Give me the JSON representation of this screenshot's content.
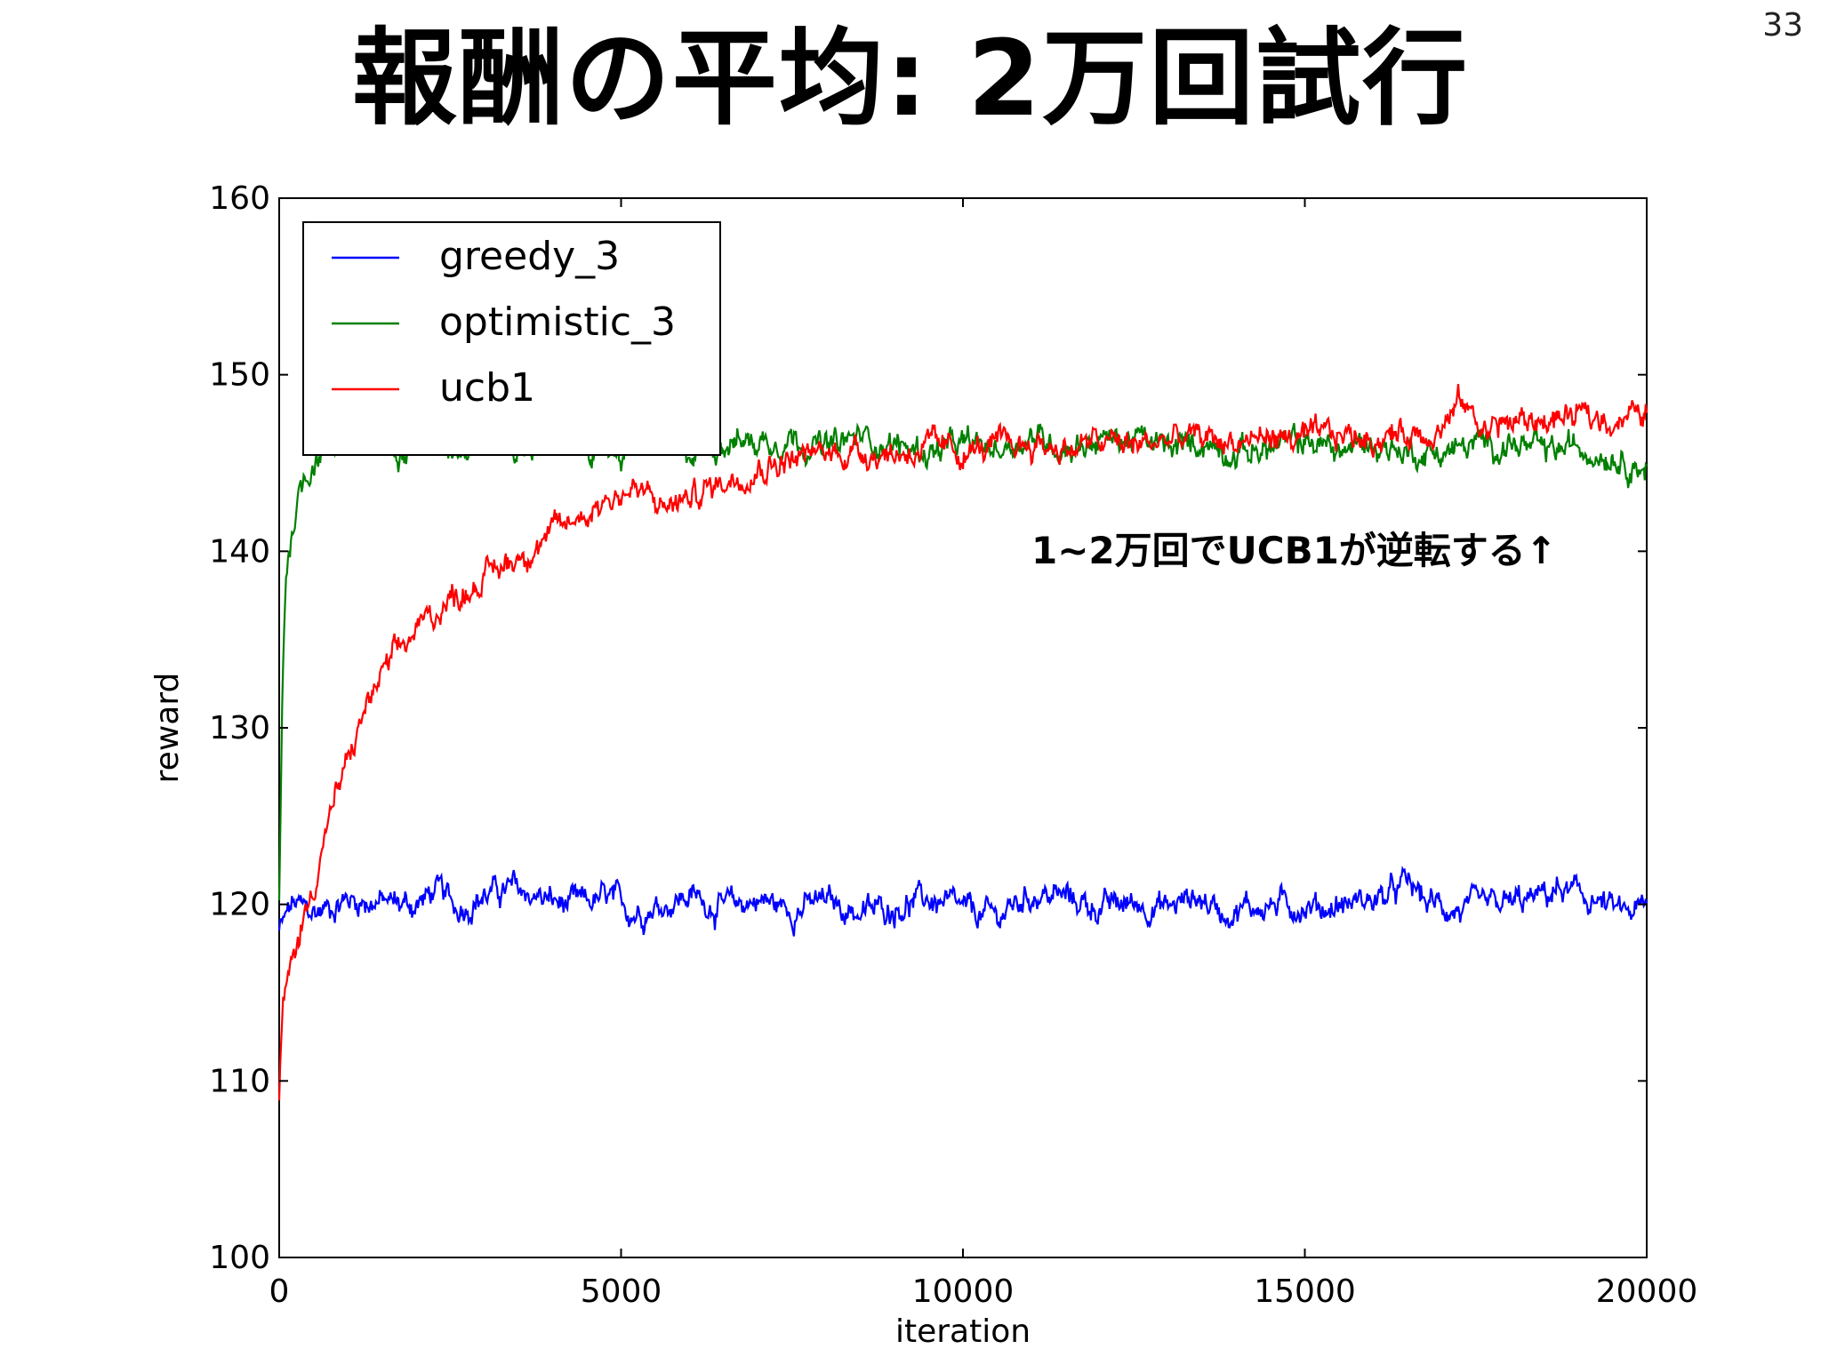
{
  "slide": {
    "title": "報酬の平均: 2万回試行",
    "page_number": "33",
    "annotation": "1~2万回でUCB1が逆転する↑"
  },
  "chart_data": {
    "type": "line",
    "title": "",
    "xlabel": "iteration",
    "ylabel": "reward",
    "xlim": [
      0,
      20000
    ],
    "ylim": [
      100,
      160
    ],
    "xticks": [
      0,
      5000,
      10000,
      15000,
      20000
    ],
    "yticks": [
      100,
      110,
      120,
      130,
      140,
      150,
      160
    ],
    "legend_position": "top-left",
    "grid": false,
    "series": [
      {
        "name": "greedy_3",
        "color": "#0000ff",
        "x": [
          0,
          200,
          500,
          1000,
          1500,
          2000,
          2300,
          2600,
          3000,
          3400,
          3800,
          4200,
          4800,
          5200,
          5600,
          6000,
          6500,
          7000,
          7500,
          8000,
          8500,
          9000,
          9500,
          10000,
          10500,
          11000,
          11500,
          12000,
          12500,
          13000,
          13400,
          13800,
          14300,
          14800,
          15300,
          15800,
          16200,
          16500,
          16800,
          17300,
          17800,
          18300,
          18700,
          19200,
          19600,
          20000
        ],
        "y": [
          118.5,
          120.0,
          119.5,
          120.3,
          120.1,
          120.0,
          120.8,
          119.8,
          120.5,
          120.9,
          120.4,
          119.9,
          120.3,
          119.6,
          120.0,
          120.5,
          119.8,
          120.3,
          119.7,
          120.2,
          119.5,
          119.9,
          120.3,
          119.6,
          119.3,
          120.6,
          120.4,
          119.8,
          120.1,
          119.8,
          120.5,
          119.6,
          119.9,
          120.0,
          119.8,
          120.2,
          120.4,
          121.2,
          120.1,
          119.6,
          119.9,
          120.2,
          120.8,
          120.3,
          119.5,
          119.7
        ]
      },
      {
        "name": "optimistic_3",
        "color": "#008000",
        "x": [
          0,
          50,
          100,
          200,
          300,
          500,
          700,
          1000,
          1500,
          2000,
          2500,
          3000,
          3500,
          4000,
          4500,
          5000,
          5500,
          6000,
          6500,
          7000,
          7500,
          8000,
          8500,
          9000,
          9500,
          10000,
          10500,
          11000,
          11500,
          12000,
          12500,
          13000,
          13500,
          14000,
          14500,
          15000,
          15500,
          16000,
          16500,
          17000,
          17500,
          18000,
          18500,
          19000,
          19500,
          20000
        ],
        "y": [
          120,
          133,
          139,
          141.5,
          143.5,
          145.2,
          146.0,
          146.3,
          145.9,
          146.4,
          146.0,
          146.5,
          145.8,
          146.3,
          146.1,
          145.7,
          146.8,
          145.5,
          146.3,
          146.2,
          146.5,
          145.8,
          146.5,
          146.0,
          145.6,
          146.0,
          145.8,
          146.5,
          145.9,
          146.3,
          146.4,
          145.8,
          146.2,
          145.6,
          145.8,
          146.3,
          145.7,
          146.1,
          145.6,
          145.6,
          146.0,
          146.1,
          145.6,
          145.9,
          145.5,
          144.7
        ]
      },
      {
        "name": "ucb1",
        "color": "#ff0000",
        "x": [
          0,
          50,
          150,
          300,
          500,
          700,
          1000,
          1300,
          1600,
          2000,
          2400,
          2800,
          3200,
          3600,
          4000,
          4400,
          4800,
          5200,
          5600,
          6000,
          6400,
          6800,
          7200,
          7600,
          8000,
          8500,
          9000,
          9500,
          10000,
          10500,
          11000,
          11500,
          12000,
          12500,
          13000,
          13500,
          14000,
          14500,
          15000,
          15500,
          16000,
          16500,
          17000,
          17300,
          17600,
          18000,
          18500,
          19000,
          19500,
          20000
        ],
        "y": [
          109,
          114,
          116,
          118.5,
          121,
          124.5,
          128,
          131.5,
          133.5,
          135.5,
          137,
          138.0,
          139.0,
          140.0,
          141.0,
          142.0,
          143.0,
          143.5,
          142.5,
          143.0,
          143.8,
          144.5,
          145.0,
          145.3,
          145.6,
          145.7,
          145.5,
          145.9,
          145.6,
          145.9,
          146.1,
          145.8,
          146.2,
          146.0,
          146.3,
          146.4,
          146.2,
          146.5,
          146.3,
          146.6,
          146.4,
          146.7,
          147.0,
          148.5,
          147.0,
          147.3,
          147.4,
          147.6,
          147.5,
          147.8
        ]
      }
    ]
  }
}
